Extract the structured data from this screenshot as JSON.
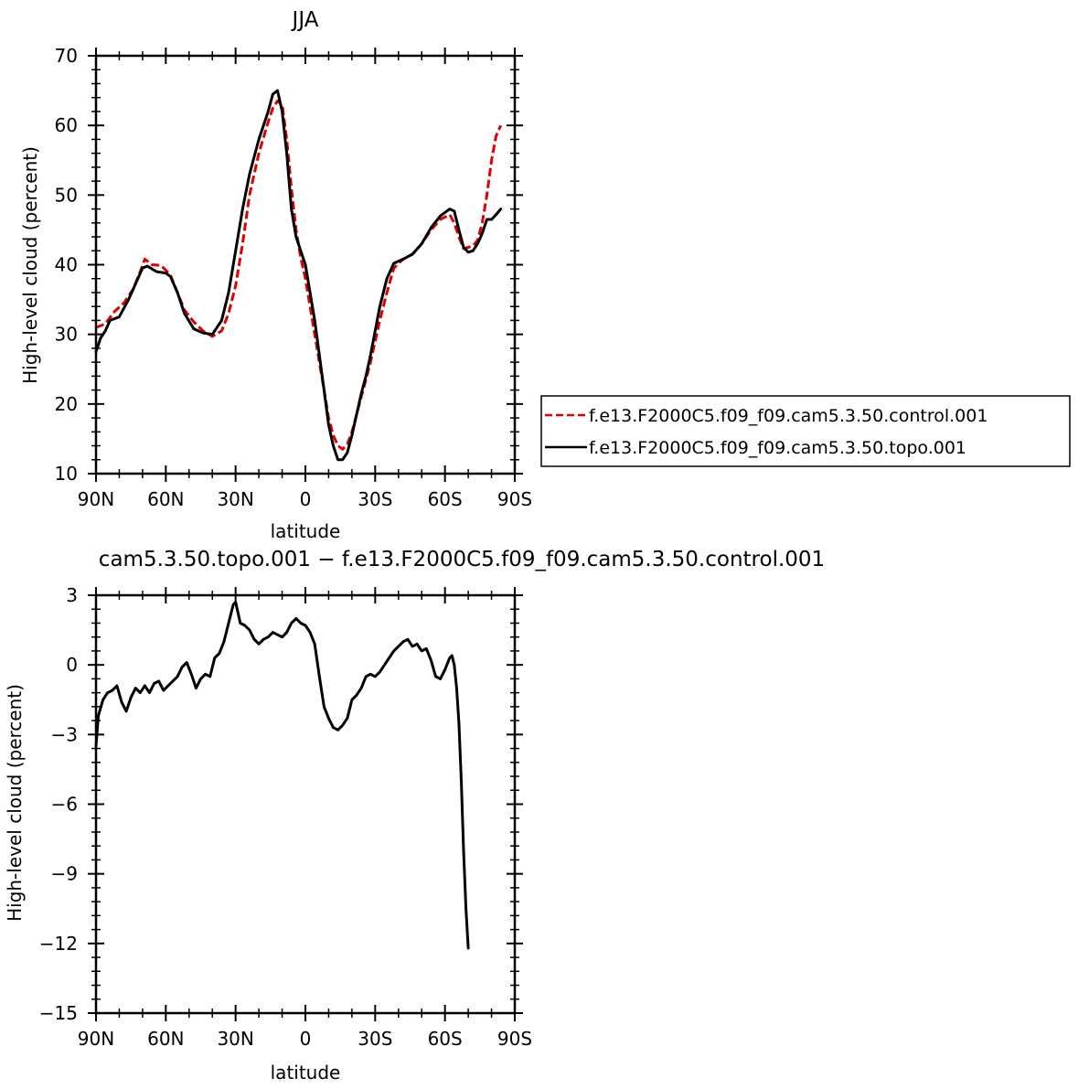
{
  "chart_data": [
    {
      "type": "line",
      "title": "JJA",
      "xlabel": "latitude",
      "ylabel": "High-level cloud (percent)",
      "xlim": [
        90,
        -90
      ],
      "ylim": [
        10,
        70
      ],
      "x_ticks": [
        90,
        60,
        30,
        0,
        -30,
        -60,
        -90
      ],
      "x_tick_labels": [
        "90N",
        "60N",
        "30N",
        "0",
        "30S",
        "60S",
        "90S"
      ],
      "y_ticks": [
        10,
        20,
        30,
        40,
        50,
        60,
        70
      ],
      "y_tick_labels": [
        "10",
        "20",
        "30",
        "40",
        "50",
        "60",
        "70"
      ],
      "legend": {
        "placement": "right",
        "entries": [
          "f.e13.F2000C5.f09_f09.cam5.3.50.control.001",
          "f.e13.F2000C5.f09_f09.cam5.3.50.topo.001"
        ]
      },
      "series": [
        {
          "name": "f.e13.F2000C5.f09_f09.cam5.3.50.control.001",
          "color": "#e00000",
          "dash": "dashed",
          "points": [
            [
              90,
              31
            ],
            [
              86,
              31.5
            ],
            [
              82,
              33.3
            ],
            [
              78,
              34.5
            ],
            [
              74,
              36.5
            ],
            [
              71,
              39
            ],
            [
              69,
              40.8
            ],
            [
              66,
              40
            ],
            [
              62,
              39.9
            ],
            [
              58,
              38.5
            ],
            [
              55,
              36
            ],
            [
              52,
              33.5
            ],
            [
              48,
              31.8
            ],
            [
              44,
              30.5
            ],
            [
              40,
              29.7
            ],
            [
              36,
              30.5
            ],
            [
              33,
              33
            ],
            [
              30,
              37
            ],
            [
              27,
              43
            ],
            [
              24,
              50
            ],
            [
              20,
              56
            ],
            [
              16,
              60.5
            ],
            [
              14,
              62.5
            ],
            [
              12,
              63.5
            ],
            [
              10,
              63
            ],
            [
              8,
              58
            ],
            [
              6,
              51
            ],
            [
              4,
              45
            ],
            [
              2,
              41
            ],
            [
              0,
              38
            ],
            [
              -2,
              34
            ],
            [
              -4,
              30
            ],
            [
              -6,
              26
            ],
            [
              -8,
              22
            ],
            [
              -10,
              18
            ],
            [
              -12,
              15.5
            ],
            [
              -14,
              14
            ],
            [
              -16,
              13.5
            ],
            [
              -18,
              14.2
            ],
            [
              -20,
              16
            ],
            [
              -22,
              18.5
            ],
            [
              -24,
              21
            ],
            [
              -26,
              23.5
            ],
            [
              -28,
              26
            ],
            [
              -30,
              29
            ],
            [
              -32,
              32
            ],
            [
              -35,
              36
            ],
            [
              -38,
              39.5
            ],
            [
              -42,
              40.8
            ],
            [
              -46,
              41.5
            ],
            [
              -50,
              43
            ],
            [
              -54,
              45
            ],
            [
              -58,
              46.5
            ],
            [
              -62,
              47.2
            ],
            [
              -64,
              46
            ],
            [
              -66,
              44
            ],
            [
              -68,
              42.3
            ],
            [
              -70,
              42.5
            ],
            [
              -72,
              42.7
            ],
            [
              -74,
              43.5
            ],
            [
              -76,
              46
            ],
            [
              -78,
              50
            ],
            [
              -80,
              55
            ],
            [
              -82,
              58.5
            ],
            [
              -84,
              60
            ]
          ]
        },
        {
          "name": "f.e13.F2000C5.f09_f09.cam5.3.50.topo.001",
          "color": "#000000",
          "dash": "solid",
          "points": [
            [
              90,
              27.5
            ],
            [
              88,
              29.5
            ],
            [
              86,
              30.5
            ],
            [
              84,
              32
            ],
            [
              80,
              32.5
            ],
            [
              76,
              35
            ],
            [
              72,
              38
            ],
            [
              70,
              39.5
            ],
            [
              68,
              39.8
            ],
            [
              64,
              39
            ],
            [
              60,
              38.8
            ],
            [
              58,
              38.3
            ],
            [
              55,
              36
            ],
            [
              52,
              33
            ],
            [
              48,
              30.8
            ],
            [
              44,
              30.2
            ],
            [
              40,
              30
            ],
            [
              36,
              32
            ],
            [
              33,
              36
            ],
            [
              30,
              42
            ],
            [
              27,
              48
            ],
            [
              24,
              53
            ],
            [
              20,
              58
            ],
            [
              16,
              62
            ],
            [
              14,
              64.5
            ],
            [
              12,
              65
            ],
            [
              10,
              62
            ],
            [
              8,
              56
            ],
            [
              6,
              48
            ],
            [
              4,
              44
            ],
            [
              2,
              42
            ],
            [
              0,
              40
            ],
            [
              -2,
              36
            ],
            [
              -4,
              32
            ],
            [
              -6,
              27
            ],
            [
              -8,
              22
            ],
            [
              -10,
              17
            ],
            [
              -12,
              14
            ],
            [
              -14,
              12
            ],
            [
              -16,
              12
            ],
            [
              -18,
              13
            ],
            [
              -20,
              15.5
            ],
            [
              -22,
              18.5
            ],
            [
              -24,
              21.5
            ],
            [
              -26,
              24
            ],
            [
              -28,
              27
            ],
            [
              -30,
              30.5
            ],
            [
              -32,
              34
            ],
            [
              -35,
              38
            ],
            [
              -38,
              40.2
            ],
            [
              -42,
              40.8
            ],
            [
              -46,
              41.5
            ],
            [
              -50,
              43
            ],
            [
              -54,
              45.3
            ],
            [
              -58,
              47
            ],
            [
              -62,
              48
            ],
            [
              -64,
              47.7
            ],
            [
              -66,
              45
            ],
            [
              -68,
              42.5
            ],
            [
              -70,
              41.8
            ],
            [
              -72,
              42
            ],
            [
              -74,
              43
            ],
            [
              -76,
              44.5
            ],
            [
              -78,
              46.5
            ],
            [
              -80,
              46.5
            ],
            [
              -82,
              47.2
            ],
            [
              -84,
              48
            ]
          ]
        }
      ]
    },
    {
      "type": "line",
      "title": "cam5.3.50.topo.001 - f.e13.F2000C5.f09_f09.cam5.3.50.control.001",
      "xlabel": "latitude",
      "ylabel": "High-level cloud (percent)",
      "xlim": [
        90,
        -90
      ],
      "ylim": [
        -15,
        3
      ],
      "x_ticks": [
        90,
        60,
        30,
        0,
        -30,
        -60,
        -90
      ],
      "x_tick_labels": [
        "90N",
        "60N",
        "30N",
        "0",
        "30S",
        "60S",
        "90S"
      ],
      "y_ticks": [
        3,
        0,
        -3,
        -6,
        -9,
        -12,
        -15
      ],
      "y_tick_labels": [
        "3",
        "0",
        "-3",
        "-6",
        "-9",
        "-12",
        "-15"
      ],
      "series": [
        {
          "color": "#000000",
          "dash": "solid",
          "points": [
            [
              90,
              -3.5
            ],
            [
              89,
              -2.2
            ],
            [
              87,
              -1.5
            ],
            [
              85,
              -1.2
            ],
            [
              83,
              -1.1
            ],
            [
              81,
              -0.9
            ],
            [
              79,
              -1.6
            ],
            [
              77,
              -2.0
            ],
            [
              75,
              -1.4
            ],
            [
              73,
              -1.0
            ],
            [
              71,
              -1.2
            ],
            [
              69,
              -0.9
            ],
            [
              67,
              -1.2
            ],
            [
              65,
              -0.8
            ],
            [
              63,
              -0.7
            ],
            [
              61,
              -1.1
            ],
            [
              59,
              -0.9
            ],
            [
              57,
              -0.7
            ],
            [
              55,
              -0.5
            ],
            [
              53,
              -0.1
            ],
            [
              51,
              0.1
            ],
            [
              49,
              -0.4
            ],
            [
              47,
              -1.0
            ],
            [
              45,
              -0.6
            ],
            [
              43,
              -0.4
            ],
            [
              41,
              -0.5
            ],
            [
              39,
              0.3
            ],
            [
              37,
              0.5
            ],
            [
              35,
              1.0
            ],
            [
              33,
              1.8
            ],
            [
              31,
              2.6
            ],
            [
              30,
              2.7
            ],
            [
              28,
              1.8
            ],
            [
              26,
              1.7
            ],
            [
              24,
              1.5
            ],
            [
              22,
              1.1
            ],
            [
              20,
              0.9
            ],
            [
              18,
              1.1
            ],
            [
              16,
              1.2
            ],
            [
              14,
              1.4
            ],
            [
              12,
              1.3
            ],
            [
              10,
              1.2
            ],
            [
              8,
              1.4
            ],
            [
              6,
              1.8
            ],
            [
              4,
              2.0
            ],
            [
              2,
              1.8
            ],
            [
              0,
              1.7
            ],
            [
              -2,
              1.4
            ],
            [
              -4,
              0.9
            ],
            [
              -6,
              -0.5
            ],
            [
              -8,
              -1.8
            ],
            [
              -10,
              -2.3
            ],
            [
              -12,
              -2.7
            ],
            [
              -14,
              -2.8
            ],
            [
              -16,
              -2.6
            ],
            [
              -18,
              -2.3
            ],
            [
              -20,
              -1.5
            ],
            [
              -22,
              -1.3
            ],
            [
              -24,
              -1.0
            ],
            [
              -26,
              -0.5
            ],
            [
              -28,
              -0.4
            ],
            [
              -30,
              -0.5
            ],
            [
              -32,
              -0.3
            ],
            [
              -34,
              0.0
            ],
            [
              -36,
              0.3
            ],
            [
              -38,
              0.6
            ],
            [
              -40,
              0.8
            ],
            [
              -42,
              1.0
            ],
            [
              -44,
              1.1
            ],
            [
              -46,
              0.8
            ],
            [
              -48,
              0.9
            ],
            [
              -50,
              0.6
            ],
            [
              -52,
              0.7
            ],
            [
              -54,
              0.2
            ],
            [
              -56,
              -0.5
            ],
            [
              -58,
              -0.6
            ],
            [
              -60,
              -0.2
            ],
            [
              -62,
              0.3
            ],
            [
              -63,
              0.4
            ],
            [
              -64,
              0.0
            ],
            [
              -65,
              -1.0
            ],
            [
              -66,
              -2.5
            ],
            [
              -67,
              -5.0
            ],
            [
              -68,
              -8.0
            ],
            [
              -69,
              -10.5
            ],
            [
              -70,
              -12.2
            ]
          ]
        }
      ]
    }
  ]
}
